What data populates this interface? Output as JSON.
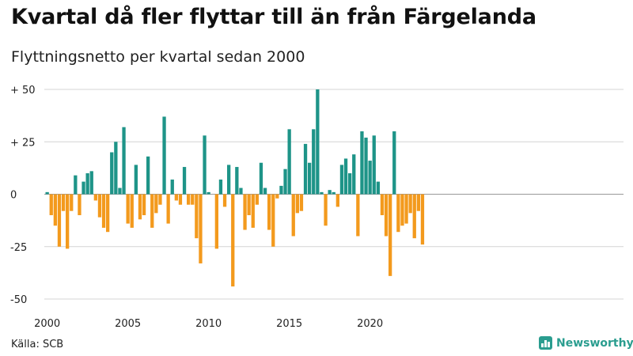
{
  "title": "Kvartal då fler flyttar till än från Färgelanda",
  "subtitle": "Flyttningsnetto per kvartal sedan 2000",
  "source": "Källa: SCB",
  "brand": "Newsworthy",
  "colors": {
    "positive": "#1e9488",
    "negative": "#f39a1d",
    "grid": "#d4d4d4",
    "zero": "#999999",
    "brand": "#2a9d8f"
  },
  "chart_data": {
    "type": "bar",
    "start": "2000 Q1",
    "ylim": [
      -50,
      50
    ],
    "yticks": [
      {
        "value": 50,
        "label": "+ 50"
      },
      {
        "value": 25,
        "label": "+ 25"
      },
      {
        "value": 0,
        "label": "0"
      },
      {
        "value": -25,
        "label": "-25"
      },
      {
        "value": -50,
        "label": "-50"
      }
    ],
    "xticks": [
      {
        "year": 2000,
        "label": "2000"
      },
      {
        "year": 2005,
        "label": "2005"
      },
      {
        "year": 2010,
        "label": "2010"
      },
      {
        "year": 2015,
        "label": "2015"
      },
      {
        "year": 2020,
        "label": "2020"
      }
    ],
    "grid": true,
    "legend": "none",
    "values": [
      1,
      -10,
      -15,
      -25,
      -8,
      -26,
      -8,
      9,
      -10,
      6,
      10,
      11,
      -3,
      -11,
      -16,
      -18,
      20,
      25,
      3,
      32,
      -14,
      -16,
      14,
      -12,
      -10,
      18,
      -16,
      -9,
      -5,
      37,
      -14,
      7,
      -3,
      -5,
      13,
      -5,
      -5,
      -21,
      -33,
      28,
      1,
      0,
      -26,
      7,
      -6,
      14,
      -44,
      13,
      3,
      -17,
      -10,
      -16,
      -5,
      15,
      3,
      -17,
      -25,
      -2,
      4,
      12,
      31,
      -20,
      -9,
      -8,
      24,
      15,
      31,
      50,
      1,
      -15,
      2,
      1,
      -6,
      14,
      17,
      10,
      19,
      -20,
      30,
      27,
      16,
      28,
      6,
      -10,
      -20,
      -39,
      30,
      -18,
      -15,
      -14,
      -9,
      -21,
      -8,
      -24
    ]
  }
}
